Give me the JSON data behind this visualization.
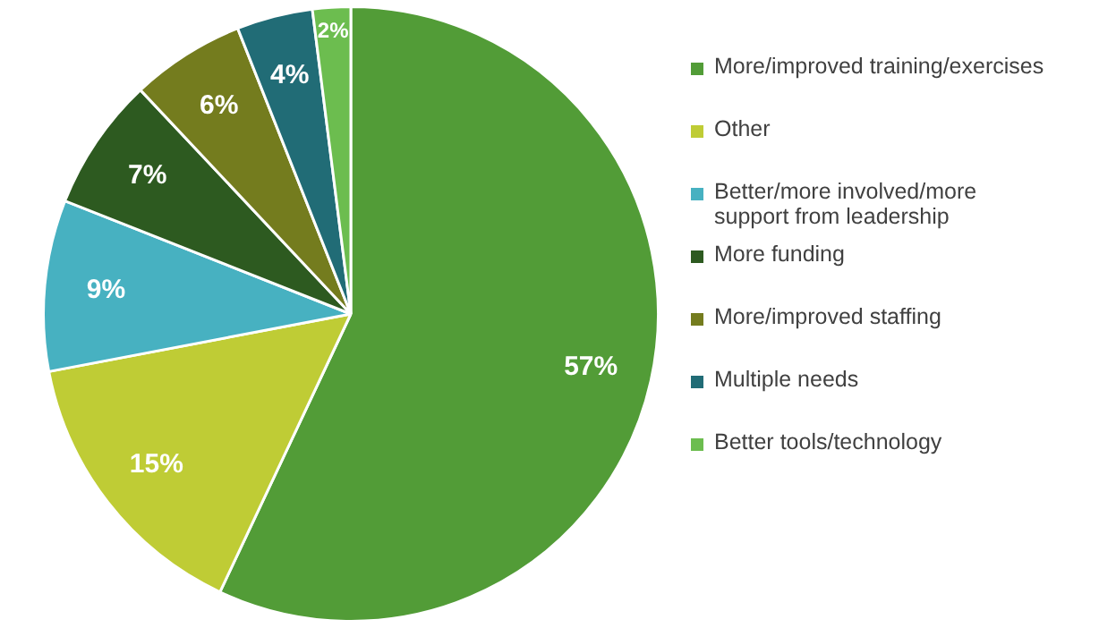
{
  "chart_data": {
    "type": "pie",
    "categories": [
      "More/improved training/exercises",
      "Other",
      "Better/more involved/more support from leadership",
      "More funding",
      "More/improved staffing",
      "Multiple needs",
      "Better tools/technology"
    ],
    "values": [
      57,
      15,
      9,
      7,
      6,
      4,
      2
    ],
    "colors": [
      "#529c37",
      "#bfcc35",
      "#47b1c1",
      "#2d5a20",
      "#747c1e",
      "#216c76",
      "#6cbd4f"
    ],
    "value_labels": [
      "57%",
      "15%",
      "9%",
      "7%",
      "6%",
      "4%",
      "2%"
    ],
    "legend": "right"
  }
}
